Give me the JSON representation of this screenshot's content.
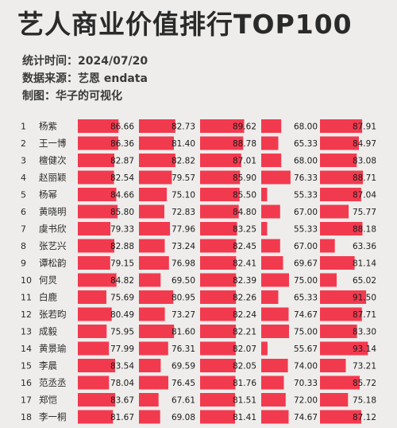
{
  "header": {
    "title": "艺人商业价值排行TOP100",
    "time_label": "统计时间：2024/07/20",
    "source_label": "数据来源：艺恩 endata",
    "made_label": "制图：华子的可视化"
  },
  "colors": {
    "bar": "#f23a4f",
    "background": "#eeedeb"
  },
  "chart_data": {
    "type": "bar",
    "orientation": "horizontal",
    "title": "艺人商业价值排行TOP100",
    "ranks": [
      1,
      2,
      3,
      4,
      5,
      6,
      7,
      8,
      9,
      10,
      11,
      12,
      13,
      14,
      15,
      16,
      17,
      18
    ],
    "categories": [
      "杨紫",
      "王一博",
      "檀健次",
      "赵丽颖",
      "杨幂",
      "黄晓明",
      "虞书欣",
      "张艺兴",
      "谭松韵",
      "何炅",
      "白鹿",
      "张若昀",
      "成毅",
      "黄景瑜",
      "李晨",
      "范丞丞",
      "郑恺",
      "李一桐"
    ],
    "series": [
      {
        "values": [
          86.66,
          86.36,
          82.87,
          82.54,
          84.66,
          85.8,
          79.33,
          82.88,
          79.15,
          84.82,
          75.69,
          80.49,
          75.95,
          77.99,
          83.54,
          78.04,
          83.67,
          81.67
        ]
      },
      {
        "values": [
          82.73,
          81.4,
          82.82,
          79.57,
          75.1,
          72.83,
          77.96,
          73.24,
          76.98,
          69.5,
          80.95,
          73.27,
          81.6,
          76.31,
          69.59,
          76.45,
          67.61,
          69.08
        ]
      },
      {
        "values": [
          89.62,
          88.78,
          87.01,
          85.9,
          85.5,
          84.8,
          83.25,
          82.45,
          82.41,
          82.39,
          82.26,
          82.24,
          82.21,
          82.07,
          82.05,
          81.76,
          81.51,
          81.41
        ]
      },
      {
        "values": [
          68.0,
          65.33,
          68.0,
          76.33,
          55.33,
          67.0,
          55.33,
          67.0,
          69.67,
          75.0,
          65.33,
          74.67,
          75.0,
          55.67,
          74.0,
          70.33,
          72.0,
          74.67
        ]
      },
      {
        "values": [
          87.91,
          84.97,
          83.08,
          88.71,
          87.04,
          75.77,
          88.18,
          63.36,
          81.14,
          65.02,
          91.5,
          87.71,
          83.3,
          93.14,
          73.21,
          85.72,
          75.18,
          87.12
        ]
      }
    ],
    "xlim": [
      0,
      100
    ],
    "grid": false,
    "legend": "none"
  }
}
